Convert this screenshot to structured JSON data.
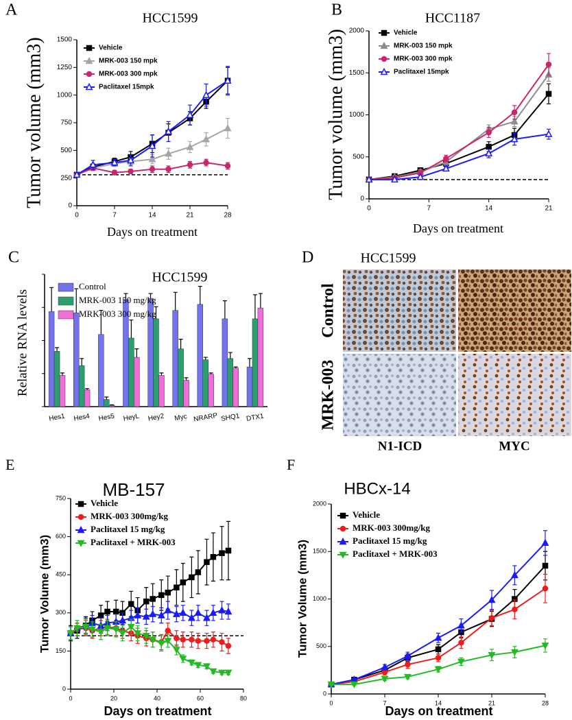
{
  "chart_data": [
    {
      "type": "line",
      "panel": "A",
      "title": "HCC1599",
      "x_label": "Days on treatment",
      "y_label": "Tumor volume (mm3)",
      "x": [
        0,
        3,
        7,
        10,
        14,
        17,
        21,
        24,
        28
      ],
      "xlim": [
        0,
        28
      ],
      "xticks": [
        0,
        7,
        14,
        21,
        28
      ],
      "ylim": [
        0,
        1500
      ],
      "yticks": [
        0,
        250,
        500,
        750,
        1000,
        1250,
        1500
      ],
      "reference_line": 280,
      "series": [
        {
          "name": "Vehicle",
          "color": "#000000",
          "marker": "square",
          "values": [
            280,
            350,
            400,
            440,
            560,
            660,
            790,
            940,
            1130
          ],
          "errors": [
            10,
            30,
            30,
            50,
            80,
            80,
            60,
            60,
            120
          ]
        },
        {
          "name": "MRK-003 150 mpk",
          "color": "#a6a6a6",
          "marker": "triangle",
          "values": [
            280,
            340,
            380,
            400,
            420,
            470,
            530,
            600,
            700
          ],
          "errors": [
            10,
            20,
            20,
            30,
            40,
            50,
            50,
            60,
            90
          ]
        },
        {
          "name": "MRK-003 300 mpk",
          "color": "#c8266e",
          "marker": "circle",
          "values": [
            280,
            340,
            300,
            310,
            330,
            330,
            370,
            390,
            360
          ],
          "errors": [
            10,
            20,
            20,
            20,
            30,
            30,
            30,
            30,
            30
          ]
        },
        {
          "name": "Paclitaxel 15mpk",
          "color": "#1a1aff",
          "marker": "triangle-open",
          "values": [
            280,
            370,
            390,
            410,
            540,
            670,
            820,
            1000,
            1130
          ],
          "errors": [
            10,
            40,
            30,
            50,
            100,
            90,
            90,
            100,
            130
          ]
        }
      ]
    },
    {
      "type": "line",
      "panel": "B",
      "title": "HCC1187",
      "x_label": "Days on treatment",
      "y_label": "Tumor volume (mm3)",
      "x": [
        0,
        3,
        6,
        9,
        14,
        17,
        21
      ],
      "xlim": [
        0,
        21
      ],
      "xticks": [
        0,
        7,
        14,
        21
      ],
      "ylim": [
        0,
        2000
      ],
      "yticks": [
        0,
        500,
        1000,
        1500,
        2000
      ],
      "reference_line": 230,
      "series": [
        {
          "name": "Vehicle",
          "color": "#000000",
          "marker": "square",
          "values": [
            230,
            270,
            340,
            420,
            620,
            760,
            1250
          ],
          "errors": [
            10,
            20,
            30,
            40,
            60,
            80,
            120
          ]
        },
        {
          "name": "MRK-003 150 mpk",
          "color": "#8c8c8c",
          "marker": "triangle",
          "values": [
            230,
            260,
            320,
            440,
            830,
            920,
            1480
          ],
          "errors": [
            10,
            20,
            30,
            40,
            50,
            60,
            80
          ]
        },
        {
          "name": "MRK-003 300 mpk",
          "color": "#c8266e",
          "marker": "circle",
          "values": [
            230,
            250,
            310,
            480,
            790,
            1030,
            1600
          ],
          "errors": [
            10,
            20,
            30,
            40,
            60,
            80,
            130
          ]
        },
        {
          "name": "Paclitaxel 15mpk",
          "color": "#1a1aff",
          "marker": "triangle-open",
          "values": [
            230,
            230,
            260,
            360,
            540,
            710,
            770
          ],
          "errors": [
            10,
            20,
            20,
            30,
            50,
            70,
            60
          ]
        }
      ]
    },
    {
      "type": "bar",
      "panel": "C",
      "title": "HCC1599",
      "y_label": "Relative RNA levels",
      "categories": [
        "Hes1",
        "Hes4",
        "Hes5",
        "HeyL",
        "Hey2",
        "Myc",
        "NRARP",
        "SHQ1",
        "DTX1"
      ],
      "ylim": [
        0,
        1.1
      ],
      "series": [
        {
          "name": "Control",
          "color": "#7373ea",
          "values": [
            0.79,
            0.78,
            0.6,
            0.89,
            0.9,
            0.8,
            0.85,
            0.73,
            0.33
          ],
          "errors": [
            0.2,
            0.2,
            0.2,
            0.05,
            0.04,
            0.15,
            0.15,
            0.15,
            0.07
          ]
        },
        {
          "name": "MRK-003 150 mg/kg",
          "color": "#2e9e6e",
          "values": [
            0.46,
            0.34,
            0.06,
            0.57,
            0.73,
            0.48,
            0.39,
            0.4,
            0.73
          ],
          "errors": [
            0.03,
            0.06,
            0.02,
            0.15,
            0.1,
            0.08,
            0.02,
            0.05,
            0.2
          ]
        },
        {
          "name": "MRK-003 300 mg/kg",
          "color": "#ef6ed8",
          "values": [
            0.26,
            0.14,
            0.01,
            0.41,
            0.26,
            0.22,
            0.27,
            0.32,
            0.82
          ],
          "errors": [
            0.02,
            0.01,
            0.005,
            0.07,
            0.02,
            0.02,
            0.01,
            0.01,
            0.12
          ]
        }
      ]
    },
    {
      "type": "line",
      "panel": "E",
      "title": "MB-157",
      "x_label": "Days on treatment",
      "y_label": "Tumor Volume (mm3)",
      "x": [
        0,
        3,
        7,
        10,
        14,
        17,
        21,
        24,
        28,
        31,
        35,
        38,
        42,
        45,
        49,
        52,
        56,
        59,
        63,
        66,
        70,
        73
      ],
      "xlim": [
        0,
        80
      ],
      "xticks": [
        0,
        20,
        40,
        60,
        80
      ],
      "ylim": [
        0,
        750
      ],
      "yticks": [
        0,
        150,
        300,
        450,
        600,
        750
      ],
      "reference_line": 210,
      "series": [
        {
          "name": "Vehicle",
          "color": "#000000",
          "marker": "square",
          "values": [
            220,
            230,
            250,
            270,
            290,
            305,
            305,
            300,
            335,
            310,
            345,
            355,
            370,
            380,
            400,
            420,
            440,
            460,
            500,
            520,
            535,
            545
          ],
          "errors": [
            30,
            30,
            35,
            35,
            40,
            40,
            45,
            45,
            50,
            50,
            55,
            60,
            60,
            65,
            70,
            75,
            80,
            85,
            90,
            95,
            105,
            115
          ]
        },
        {
          "name": "MRK-003 300mg/kg",
          "color": "#ee1c1c",
          "marker": "circle",
          "values": [
            220,
            235,
            240,
            230,
            240,
            245,
            240,
            230,
            220,
            210,
            200,
            195,
            185,
            230,
            200,
            195,
            195,
            190,
            190,
            195,
            185,
            170
          ],
          "errors": [
            25,
            25,
            30,
            30,
            30,
            30,
            30,
            30,
            30,
            30,
            30,
            30,
            30,
            30,
            30,
            30,
            30,
            30,
            30,
            30,
            35,
            30
          ]
        },
        {
          "name": "Paclitaxel 15 mg/kg",
          "color": "#1a1aff",
          "marker": "triangle",
          "values": [
            220,
            240,
            250,
            260,
            250,
            260,
            265,
            270,
            280,
            290,
            285,
            295,
            290,
            310,
            295,
            300,
            280,
            300,
            280,
            300,
            310,
            305
          ],
          "errors": [
            25,
            30,
            30,
            30,
            30,
            30,
            30,
            30,
            30,
            30,
            30,
            30,
            30,
            35,
            30,
            30,
            30,
            30,
            30,
            30,
            35,
            30
          ]
        },
        {
          "name": "Paclitaxel + MRK-003",
          "color": "#22bb22",
          "marker": "triangle-down",
          "values": [
            220,
            240,
            245,
            235,
            225,
            240,
            235,
            220,
            245,
            220,
            210,
            195,
            180,
            190,
            155,
            120,
            105,
            95,
            90,
            70,
            65,
            65
          ],
          "errors": [
            25,
            30,
            30,
            30,
            30,
            30,
            30,
            30,
            30,
            30,
            30,
            30,
            30,
            25,
            20,
            15,
            10,
            10,
            10,
            8,
            8,
            8
          ]
        }
      ]
    },
    {
      "type": "line",
      "panel": "F",
      "title": "HBCx-14",
      "x_label": "Days on treatment",
      "y_label": "Tumor Volume (mm3)",
      "x": [
        0,
        3,
        7,
        10,
        14,
        17,
        21,
        24,
        28
      ],
      "xlim": [
        0,
        28
      ],
      "xticks": [
        0,
        7,
        14,
        21,
        28
      ],
      "ylim": [
        0,
        2000
      ],
      "yticks": [
        0,
        500,
        1000,
        1500,
        2000
      ],
      "series": [
        {
          "name": "Vehicle",
          "color": "#000000",
          "marker": "square",
          "values": [
            100,
            150,
            250,
            380,
            470,
            650,
            790,
            1000,
            1350
          ],
          "errors": [
            10,
            15,
            30,
            40,
            50,
            60,
            80,
            100,
            150
          ]
        },
        {
          "name": "MRK-003 300mg/kg",
          "color": "#ee1c1c",
          "marker": "circle",
          "values": [
            100,
            130,
            230,
            310,
            380,
            540,
            800,
            890,
            1110
          ],
          "errors": [
            10,
            15,
            30,
            40,
            40,
            60,
            80,
            100,
            150
          ]
        },
        {
          "name": "Paclitaxel 15 mg/kg",
          "color": "#1a1aff",
          "marker": "triangle",
          "values": [
            100,
            150,
            280,
            400,
            590,
            720,
            990,
            1250,
            1590
          ],
          "errors": [
            10,
            15,
            30,
            40,
            50,
            70,
            100,
            100,
            130
          ]
        },
        {
          "name": "Paclitaxel + MRK-003",
          "color": "#22bb22",
          "marker": "triangle-down",
          "values": [
            100,
            100,
            160,
            180,
            260,
            340,
            410,
            440,
            510
          ],
          "errors": [
            10,
            10,
            20,
            20,
            30,
            40,
            60,
            60,
            70
          ]
        }
      ]
    }
  ],
  "image_panel": {
    "panel": "D",
    "title": "HCC1599",
    "row_labels": [
      "Control",
      "MRK-003"
    ],
    "column_labels": [
      "N1-ICD",
      "MYC"
    ]
  }
}
